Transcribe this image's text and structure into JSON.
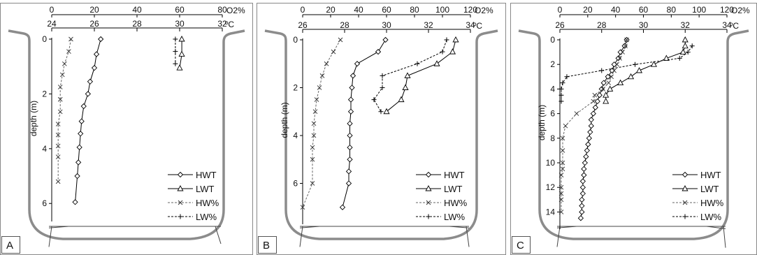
{
  "figure": {
    "top_axis_unit": "O2%",
    "temp_axis_unit": "ºC",
    "depth_label": "depth (m)",
    "legend": [
      "HWT",
      "LWT",
      "HW%",
      "LW%"
    ]
  },
  "chart_data": [
    {
      "type": "line",
      "panel_label": "A",
      "o2_ticks": [
        0,
        20,
        40,
        60,
        80
      ],
      "temp_ticks": [
        24,
        26,
        28,
        30,
        32
      ],
      "depth_ticks": [
        0,
        2,
        4,
        6
      ],
      "o2_range": [
        0,
        80
      ],
      "temp_range": [
        24,
        32
      ],
      "depth_range": [
        0,
        6.3
      ],
      "series": [
        {
          "name": "HWT",
          "axis": "temp",
          "points": [
            [
              26.3,
              0
            ],
            [
              26.1,
              0.55
            ],
            [
              26.0,
              1.05
            ],
            [
              25.8,
              1.55
            ],
            [
              25.7,
              2.0
            ],
            [
              25.5,
              2.45
            ],
            [
              25.4,
              3.0
            ],
            [
              25.35,
              3.45
            ],
            [
              25.3,
              3.95
            ],
            [
              25.25,
              4.5
            ],
            [
              25.2,
              5.0
            ],
            [
              25.1,
              5.95
            ]
          ]
        },
        {
          "name": "LWT",
          "axis": "temp",
          "points": [
            [
              30.1,
              0
            ],
            [
              30.1,
              0.55
            ],
            [
              30.0,
              1.05
            ]
          ]
        },
        {
          "name": "HW%",
          "axis": "o2",
          "points": [
            [
              9,
              0
            ],
            [
              8,
              0.45
            ],
            [
              6,
              0.9
            ],
            [
              5,
              1.3
            ],
            [
              4,
              1.75
            ],
            [
              4,
              2.2
            ],
            [
              4,
              2.65
            ],
            [
              3,
              3.1
            ],
            [
              3,
              3.5
            ],
            [
              3,
              3.9
            ],
            [
              3,
              4.3
            ],
            [
              3,
              5.2
            ]
          ]
        },
        {
          "name": "LW%",
          "axis": "o2",
          "points": [
            [
              58,
              0
            ],
            [
              58,
              0.45
            ],
            [
              58,
              0.9
            ]
          ]
        }
      ]
    },
    {
      "type": "line",
      "panel_label": "B",
      "o2_ticks": [
        0,
        20,
        40,
        60,
        80,
        100,
        120
      ],
      "temp_ticks": [
        26,
        28,
        30,
        32,
        34
      ],
      "depth_ticks": [
        0,
        2,
        4,
        6
      ],
      "o2_range": [
        0,
        120
      ],
      "temp_range": [
        26,
        34
      ],
      "depth_range": [
        0,
        7.3
      ],
      "series": [
        {
          "name": "HWT",
          "axis": "temp",
          "points": [
            [
              29.95,
              0
            ],
            [
              29.6,
              0.5
            ],
            [
              28.6,
              1.0
            ],
            [
              28.4,
              1.5
            ],
            [
              28.35,
              2.0
            ],
            [
              28.3,
              2.5
            ],
            [
              28.3,
              3.0
            ],
            [
              28.25,
              3.5
            ],
            [
              28.25,
              4.0
            ],
            [
              28.25,
              4.5
            ],
            [
              28.25,
              5.0
            ],
            [
              28.2,
              5.5
            ],
            [
              28.2,
              6.0
            ],
            [
              27.9,
              7.0
            ]
          ]
        },
        {
          "name": "LWT",
          "axis": "temp",
          "points": [
            [
              33.3,
              0
            ],
            [
              33.15,
              0.5
            ],
            [
              32.4,
              1.0
            ],
            [
              31.0,
              1.5
            ],
            [
              30.9,
              2.0
            ],
            [
              30.7,
              2.5
            ],
            [
              30.0,
              3.0
            ]
          ]
        },
        {
          "name": "HW%",
          "axis": "o2",
          "points": [
            [
              27,
              0
            ],
            [
              22,
              0.5
            ],
            [
              17,
              1.0
            ],
            [
              14,
              1.5
            ],
            [
              12,
              2.0
            ],
            [
              10,
              2.5
            ],
            [
              9,
              3.0
            ],
            [
              8,
              3.5
            ],
            [
              8,
              4.0
            ],
            [
              7,
              4.5
            ],
            [
              7,
              5.0
            ],
            [
              7,
              6.0
            ],
            [
              0,
              7.0
            ]
          ]
        },
        {
          "name": "LW%",
          "axis": "o2",
          "points": [
            [
              103,
              0
            ],
            [
              100,
              0.5
            ],
            [
              82,
              1.0
            ],
            [
              57,
              1.5
            ],
            [
              57,
              2.0
            ],
            [
              51,
              2.5
            ],
            [
              56,
              3.0
            ]
          ]
        }
      ]
    },
    {
      "type": "line",
      "panel_label": "C",
      "o2_ticks": [
        0,
        20,
        40,
        60,
        80,
        100,
        120
      ],
      "temp_ticks": [
        26,
        28,
        30,
        32,
        34
      ],
      "depth_ticks": [
        0,
        2,
        4,
        6,
        8,
        10,
        12,
        14
      ],
      "o2_range": [
        0,
        120
      ],
      "temp_range": [
        26,
        34
      ],
      "depth_range": [
        0,
        14.6
      ],
      "series": [
        {
          "name": "HWT",
          "axis": "temp",
          "points": [
            [
              29.2,
              0
            ],
            [
              29.1,
              0.5
            ],
            [
              28.9,
              1.0
            ],
            [
              28.8,
              1.5
            ],
            [
              28.6,
              2.0
            ],
            [
              28.5,
              2.5
            ],
            [
              28.3,
              3.0
            ],
            [
              28.1,
              3.5
            ],
            [
              28.0,
              4.0
            ],
            [
              27.9,
              4.5
            ],
            [
              27.8,
              5.0
            ],
            [
              27.7,
              5.5
            ],
            [
              27.6,
              6.0
            ],
            [
              27.5,
              6.5
            ],
            [
              27.5,
              7.0
            ],
            [
              27.45,
              7.5
            ],
            [
              27.4,
              8.0
            ],
            [
              27.35,
              8.5
            ],
            [
              27.3,
              9.0
            ],
            [
              27.25,
              9.5
            ],
            [
              27.2,
              10.0
            ],
            [
              27.15,
              10.5
            ],
            [
              27.15,
              11.0
            ],
            [
              27.1,
              11.5
            ],
            [
              27.1,
              12.0
            ],
            [
              27.1,
              12.5
            ],
            [
              27.05,
              13.0
            ],
            [
              27.05,
              13.5
            ],
            [
              27.05,
              14.0
            ],
            [
              27.0,
              14.5
            ]
          ]
        },
        {
          "name": "LWT",
          "axis": "temp",
          "points": [
            [
              32.0,
              0
            ],
            [
              32.0,
              0.5
            ],
            [
              31.9,
              1.0
            ],
            [
              31.1,
              1.5
            ],
            [
              30.5,
              2.0
            ],
            [
              29.8,
              2.5
            ],
            [
              29.4,
              3.0
            ],
            [
              28.9,
              3.5
            ],
            [
              28.4,
              4.0
            ],
            [
              28.2,
              4.5
            ],
            [
              28.2,
              5.0
            ]
          ]
        },
        {
          "name": "HW%",
          "axis": "o2",
          "points": [
            [
              48,
              0
            ],
            [
              47,
              0.5
            ],
            [
              45,
              1.0
            ],
            [
              43,
              1.5
            ],
            [
              41,
              2.0
            ],
            [
              39,
              2.5
            ],
            [
              37,
              3.0
            ],
            [
              35,
              3.5
            ],
            [
              31,
              4.0
            ],
            [
              25,
              4.5
            ],
            [
              24,
              5.0
            ],
            [
              12,
              6.0
            ],
            [
              4,
              7.0
            ],
            [
              2,
              8.0
            ],
            [
              2,
              9.0
            ],
            [
              2,
              10.0
            ],
            [
              2,
              10.5
            ],
            [
              1,
              11.0
            ],
            [
              1,
              12.0
            ],
            [
              1,
              12.5
            ],
            [
              1,
              13.0
            ],
            [
              1,
              14.0
            ]
          ]
        },
        {
          "name": "LW%",
          "axis": "o2",
          "points": [
            [
              95,
              0.5
            ],
            [
              92,
              1.0
            ],
            [
              86,
              1.5
            ],
            [
              54,
              2.0
            ],
            [
              30,
              2.5
            ],
            [
              5,
              3.0
            ],
            [
              2,
              3.5
            ],
            [
              1,
              4.0
            ],
            [
              1,
              4.5
            ],
            [
              1,
              5.0
            ]
          ]
        }
      ]
    }
  ]
}
